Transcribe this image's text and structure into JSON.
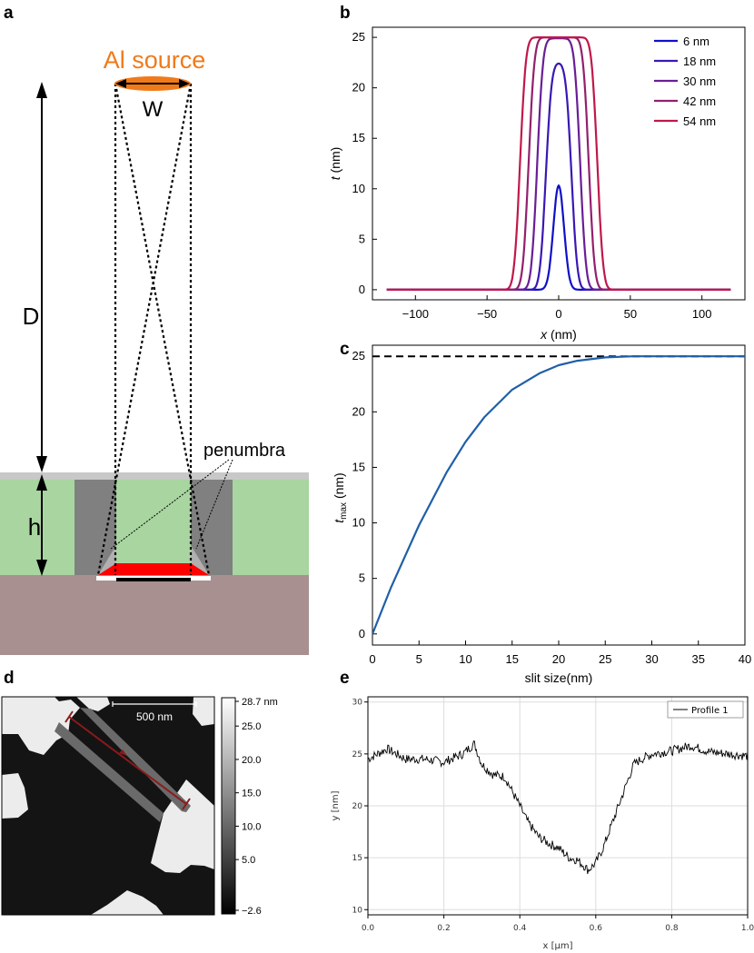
{
  "panel_labels": {
    "a": "a",
    "b": "b",
    "c": "c",
    "d": "d",
    "e": "e"
  },
  "panel_a": {
    "source_label": "Al source",
    "width_label": "W",
    "distance_label": "D",
    "height_label": "h",
    "penumbra_label": "penumbra",
    "colors": {
      "source": "#f07a1a",
      "resist": "#a8d5a0",
      "substrate": "#a89090",
      "mask": "#808080",
      "deposit": "#ff0000"
    }
  },
  "chart_data": [
    {
      "id": "b",
      "type": "line",
      "xlabel_var": "x",
      "xlabel_unit": " (nm)",
      "ylabel_var": "t",
      "ylabel_unit": " (nm)",
      "xlim": [
        -130,
        130
      ],
      "ylim": [
        -1,
        26
      ],
      "xticks": [
        "−100",
        "−50",
        "0",
        "50",
        "100"
      ],
      "xtick_values": [
        -100,
        -50,
        0,
        50,
        100
      ],
      "yticks": [
        "0",
        "5",
        "10",
        "15",
        "20",
        "25"
      ],
      "ytick_values": [
        0,
        5,
        10,
        15,
        20,
        25
      ],
      "legend_position": "top-right",
      "x_range": [
        -120,
        120
      ],
      "series": [
        {
          "name": "6 nm",
          "slit": 6,
          "color": "#1010c8"
        },
        {
          "name": "18 nm",
          "slit": 18,
          "color": "#3a18b4"
        },
        {
          "name": "30 nm",
          "slit": 30,
          "color": "#6a1e96"
        },
        {
          "name": "42 nm",
          "slit": 42,
          "color": "#92206e"
        },
        {
          "name": "54 nm",
          "slit": 54,
          "color": "#c0184a"
        }
      ],
      "peak_values": [
        10.3,
        22.4,
        24.9,
        25,
        25
      ]
    },
    {
      "id": "c",
      "type": "line",
      "xlabel": "slit size(nm)",
      "ylabel_var": "t",
      "ylabel_sub": "max",
      "ylabel_unit": " (nm)",
      "xlim": [
        0,
        40
      ],
      "ylim": [
        -1,
        26
      ],
      "xticks": [
        "0",
        "5",
        "10",
        "15",
        "20",
        "25",
        "30",
        "35",
        "40"
      ],
      "xtick_values": [
        0,
        5,
        10,
        15,
        20,
        25,
        30,
        35,
        40
      ],
      "yticks": [
        "0",
        "5",
        "10",
        "15",
        "20",
        "25"
      ],
      "ytick_values": [
        0,
        5,
        10,
        15,
        20,
        25
      ],
      "reference_line": 25,
      "series": [
        {
          "color": "#1f5fa8",
          "x": [
            0,
            2,
            5,
            8,
            10,
            12,
            15,
            18,
            20,
            22,
            25,
            28,
            30,
            35,
            40
          ],
          "y": [
            0,
            4.2,
            9.8,
            14.6,
            17.3,
            19.5,
            22.0,
            23.5,
            24.2,
            24.6,
            24.9,
            25.0,
            25.0,
            25.0,
            25.0
          ]
        }
      ]
    },
    {
      "id": "e",
      "type": "line",
      "xlabel": "x [µm]",
      "ylabel": "y [nm]",
      "xlim": [
        0,
        1.0
      ],
      "ylim": [
        9.5,
        30.5
      ],
      "xticks": [
        "0.0",
        "0.2",
        "0.4",
        "0.6",
        "0.8",
        "1.0"
      ],
      "xtick_values": [
        0,
        0.2,
        0.4,
        0.6,
        0.8,
        1.0
      ],
      "yticks": [
        "10",
        "15",
        "20",
        "25",
        "30"
      ],
      "ytick_values": [
        10,
        15,
        20,
        25,
        30
      ],
      "grid": true,
      "legend_position": "top-right",
      "series": [
        {
          "name": "Profile 1",
          "color": "#000000",
          "x": [
            0,
            0.05,
            0.1,
            0.15,
            0.2,
            0.25,
            0.28,
            0.3,
            0.33,
            0.36,
            0.4,
            0.42,
            0.45,
            0.48,
            0.5,
            0.53,
            0.55,
            0.57,
            0.58,
            0.6,
            0.62,
            0.65,
            0.68,
            0.7,
            0.72,
            0.75,
            0.8,
            0.85,
            0.9,
            0.95,
            1.0
          ],
          "y": [
            24.5,
            25.5,
            24.5,
            24.5,
            24.2,
            25.0,
            26.0,
            24.0,
            23.0,
            22.8,
            20.0,
            18.5,
            17.0,
            16.3,
            16.0,
            15.0,
            14.8,
            14.2,
            13.8,
            14.5,
            16.0,
            19.0,
            22.0,
            24.0,
            24.5,
            25.0,
            25.3,
            25.8,
            25.2,
            25.0,
            24.8
          ]
        }
      ]
    }
  ],
  "panel_d": {
    "scale_bar_label": "500 nm",
    "colorbar_ticks": [
      "28.7 nm",
      "25.0",
      "20.0",
      "15.0",
      "10.0",
      "5.0",
      "−2.6"
    ],
    "colorbar_values": [
      28.7,
      25.0,
      20.0,
      15.0,
      10.0,
      5.0,
      -2.6
    ],
    "line_color": "#8b1a1a"
  }
}
